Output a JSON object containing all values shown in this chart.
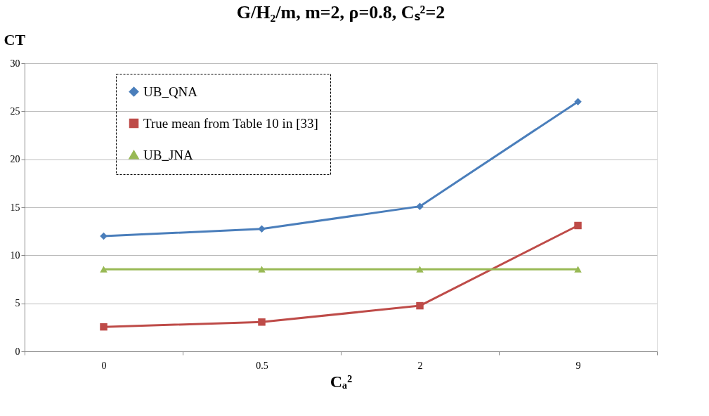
{
  "chart_data": {
    "type": "line",
    "title": "G/H₂/m, m=2, ρ=0.8, Cₛ²=2",
    "xlabel": "Cₐ²",
    "ylabel": "CT",
    "categories": [
      "0",
      "0.5",
      "2",
      "9"
    ],
    "series": [
      {
        "name": "UB_QNA",
        "color": "#4a7ebb",
        "marker": "diamond",
        "values": [
          12.0,
          12.75,
          15.1,
          26.0
        ]
      },
      {
        "name": "True mean from Table 10 in [33]",
        "color": "#be4b48",
        "marker": "square",
        "values": [
          2.55,
          3.05,
          4.75,
          13.1
        ]
      },
      {
        "name": "UB_JNA",
        "color": "#98b954",
        "marker": "triangle",
        "values": [
          8.55,
          8.55,
          8.55,
          8.55
        ]
      }
    ],
    "ylim": [
      0,
      30
    ],
    "yticks": [
      0,
      5,
      10,
      15,
      20,
      25,
      30
    ],
    "grid": "y",
    "legend": "top left",
    "line_style": "solid"
  }
}
